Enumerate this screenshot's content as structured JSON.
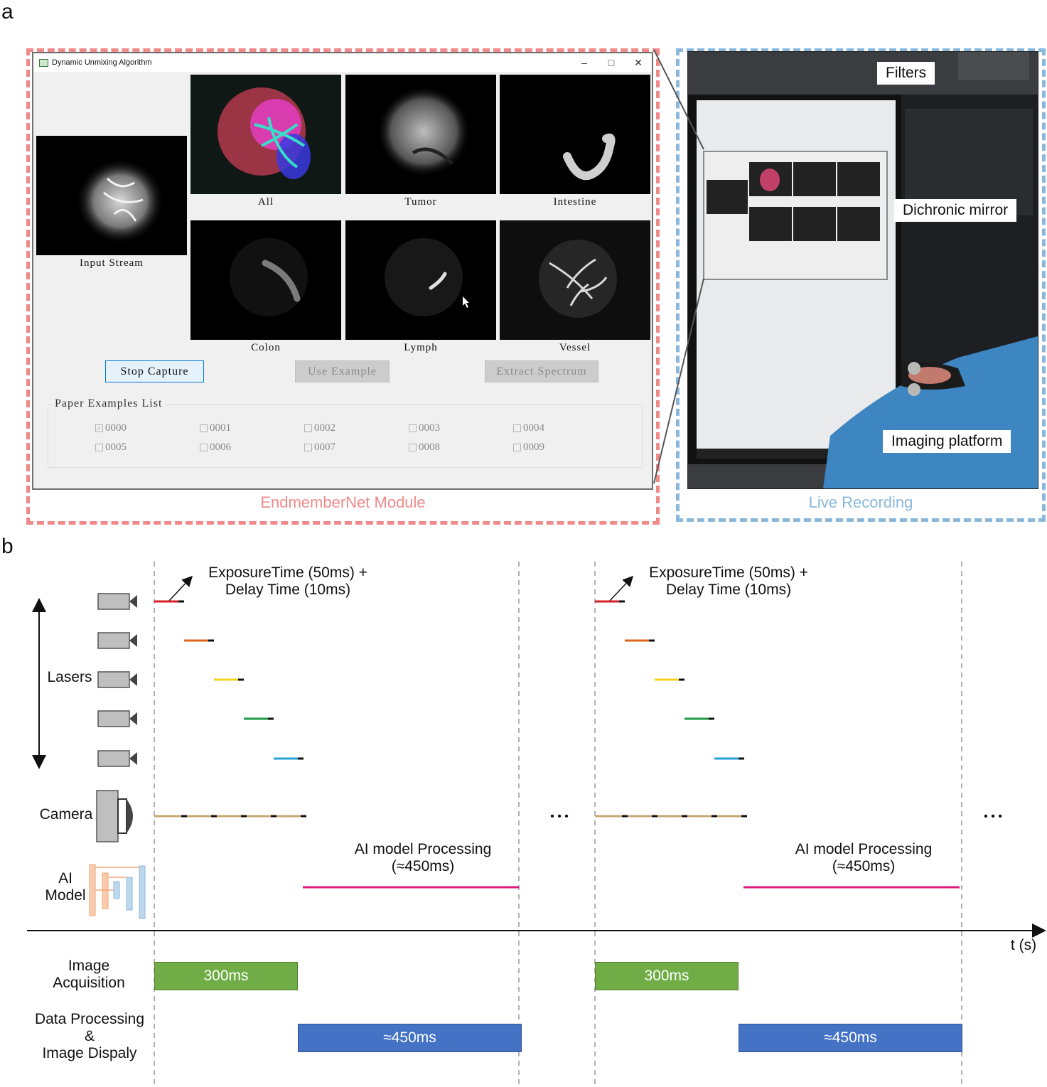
{
  "panel_a": {
    "letter": "a",
    "left_caption": "EndmemberNet Module",
    "right_caption": "Live Recording",
    "window": {
      "title": "Dynamic Unmixing Algorithm",
      "minimize": "–",
      "maximize": "□",
      "close": "✕",
      "input_label": "Input Stream",
      "tiles": [
        {
          "label": "All"
        },
        {
          "label": "Tumor"
        },
        {
          "label": "Intestine"
        },
        {
          "label": "Colon"
        },
        {
          "label": "Lymph"
        },
        {
          "label": "Vessel"
        }
      ],
      "buttons": {
        "stop": "Stop Capture",
        "example": "Use Example",
        "extract": "Extract Spectrum"
      },
      "group_title": "Paper Examples List",
      "checkboxes": [
        "0000",
        "0001",
        "0002",
        "0003",
        "0004",
        "0005",
        "0006",
        "0007",
        "0008",
        "0009"
      ],
      "checked_index": 0
    },
    "photo_labels": {
      "filters": "Filters",
      "mirror": "Dichronic mirror",
      "platform": "Imaging platform"
    }
  },
  "panel_b": {
    "letter": "b",
    "exposure_line1": "ExposureTime (50ms) +",
    "exposure_line2": "Delay Time (10ms)",
    "lasers_label": "Lasers",
    "camera_label": "Camera",
    "ai_label_1": "AI",
    "ai_label_2": "Model",
    "ai_proc_line1": "AI model Processing",
    "ai_proc_line2": "(≈450ms)",
    "ellipsis": "• • •",
    "axis_label": "t (s)",
    "acq_label_1": "Image",
    "acq_label_2": "Acquisition",
    "dp_label_1": "Data Processing",
    "dp_label_2": "&",
    "dp_label_3": "Image Dispaly",
    "acq_bar": "300ms",
    "dp_bar": "≈450ms",
    "laser_colors": [
      "#d6212b",
      "#e0661d",
      "#f2d21b",
      "#1e9a43",
      "#2aa2d8"
    ],
    "camera_line_color": "#c8a874",
    "ai_line_color": "#e0197d",
    "acq_color": "#70ad47",
    "dp_color": "#4472c4"
  }
}
